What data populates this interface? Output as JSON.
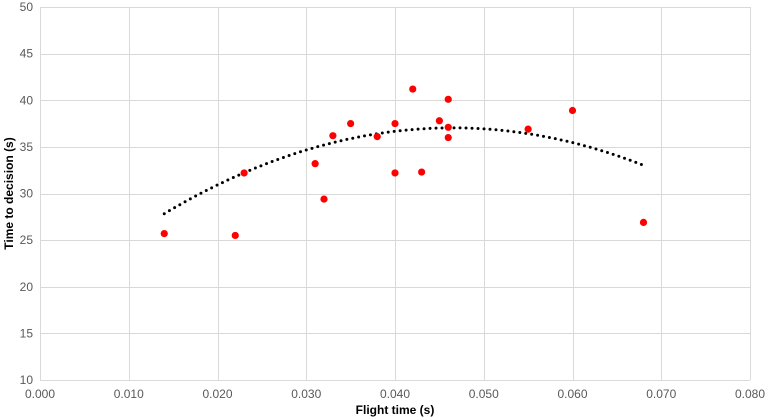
{
  "chart_data": {
    "type": "scatter",
    "title": "",
    "xlabel": "Flight time (s)",
    "ylabel": "Time to decision (s)",
    "xlim": [
      0.0,
      0.08
    ],
    "ylim": [
      10,
      50
    ],
    "x_ticks": [
      "0.000",
      "0.010",
      "0.020",
      "0.030",
      "0.040",
      "0.050",
      "0.060",
      "0.070",
      "0.080"
    ],
    "y_ticks": [
      "10",
      "15",
      "20",
      "25",
      "30",
      "35",
      "40",
      "45",
      "50"
    ],
    "grid": true,
    "series": [
      {
        "marker_color": "#ff0000",
        "x": [
          0.014,
          0.022,
          0.023,
          0.031,
          0.032,
          0.033,
          0.035,
          0.038,
          0.04,
          0.04,
          0.042,
          0.043,
          0.045,
          0.046,
          0.046,
          0.046,
          0.055,
          0.06,
          0.068
        ],
        "y": [
          25.7,
          25.5,
          32.2,
          33.2,
          29.4,
          36.2,
          37.5,
          36.1,
          32.2,
          37.5,
          41.2,
          32.3,
          37.8,
          36.0,
          37.1,
          40.1,
          36.9,
          38.9,
          26.9
        ]
      }
    ],
    "trendline": {
      "type": "polynomial-2",
      "style": "dotted",
      "color": "#000000",
      "x_range": [
        0.014,
        0.068
      ],
      "coefficients": [
        -8706,
        810,
        18.2
      ]
    }
  }
}
